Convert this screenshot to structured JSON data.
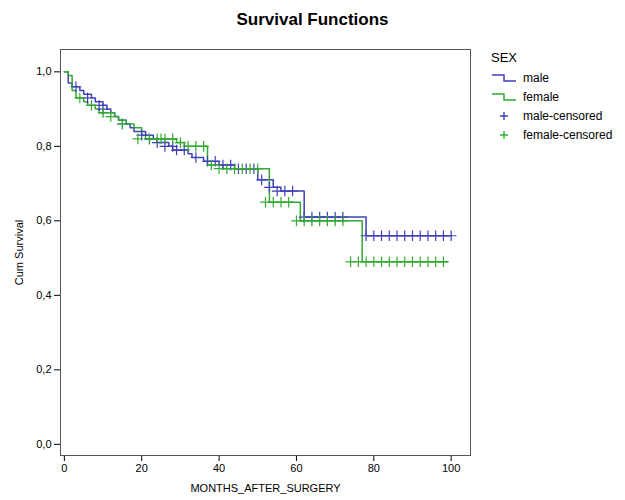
{
  "chart_data": {
    "type": "line",
    "title": "Survival Functions",
    "xlabel": "MONTHS_AFTER_SURGERY",
    "ylabel": "Cum Survival",
    "legend_title": "SEX",
    "legend": "right",
    "grid": false,
    "xlim": [
      -1,
      105
    ],
    "ylim": [
      -0.03,
      1.06
    ],
    "xticks": [
      0,
      20,
      40,
      60,
      80,
      100
    ],
    "yticks": [
      {
        "value": 0.0,
        "label": "0,0"
      },
      {
        "value": 0.2,
        "label": "0,2"
      },
      {
        "value": 0.4,
        "label": "0,4"
      },
      {
        "value": 0.6,
        "label": "0,6"
      },
      {
        "value": 0.8,
        "label": "0,8"
      },
      {
        "value": 1.0,
        "label": "1,0"
      }
    ],
    "series": [
      {
        "name": "male",
        "type": "line",
        "line_style": "step",
        "color": "#4040bb",
        "x": [
          0,
          1,
          2,
          4,
          5,
          7,
          8,
          10,
          11,
          12,
          13,
          14,
          16,
          17,
          18,
          19,
          21,
          23,
          24,
          25,
          27,
          28,
          30,
          32,
          33,
          35,
          36,
          38,
          40,
          42,
          44,
          46,
          48,
          50,
          52,
          54,
          56,
          58,
          62,
          64,
          66,
          68,
          72,
          76,
          78,
          80,
          82,
          84,
          86,
          88,
          90,
          92,
          94,
          96,
          98,
          100
        ],
        "values": [
          1.0,
          0.97,
          0.96,
          0.95,
          0.94,
          0.93,
          0.92,
          0.91,
          0.9,
          0.89,
          0.88,
          0.87,
          0.86,
          0.85,
          0.84,
          0.84,
          0.83,
          0.82,
          0.81,
          0.81,
          0.8,
          0.79,
          0.79,
          0.78,
          0.77,
          0.77,
          0.76,
          0.76,
          0.75,
          0.75,
          0.74,
          0.74,
          0.74,
          0.71,
          0.71,
          0.69,
          0.68,
          0.68,
          0.61,
          0.61,
          0.61,
          0.61,
          0.61,
          0.61,
          0.56,
          0.56,
          0.56,
          0.56,
          0.56,
          0.56,
          0.56,
          0.56,
          0.56,
          0.56,
          0.56,
          0.56
        ]
      },
      {
        "name": "female",
        "type": "line",
        "line_style": "step",
        "color": "#33aa33",
        "x": [
          0,
          1,
          2,
          3,
          5,
          6,
          8,
          9,
          11,
          13,
          14,
          16,
          17,
          18,
          20,
          21,
          23,
          27,
          29,
          31,
          33,
          35,
          37,
          39,
          41,
          43,
          45,
          47,
          49,
          51,
          53,
          55,
          57,
          59,
          61,
          63,
          65,
          67,
          69,
          71,
          73,
          75,
          77,
          79,
          81,
          83,
          85,
          87,
          89,
          91,
          93,
          95,
          97,
          99
        ],
        "values": [
          1.0,
          0.99,
          0.95,
          0.93,
          0.92,
          0.91,
          0.9,
          0.89,
          0.89,
          0.88,
          0.87,
          0.86,
          0.86,
          0.85,
          0.83,
          0.82,
          0.82,
          0.82,
          0.81,
          0.8,
          0.8,
          0.8,
          0.75,
          0.75,
          0.74,
          0.74,
          0.74,
          0.74,
          0.74,
          0.74,
          0.65,
          0.65,
          0.65,
          0.65,
          0.6,
          0.6,
          0.6,
          0.6,
          0.6,
          0.6,
          0.6,
          0.6,
          0.49,
          0.49,
          0.49,
          0.49,
          0.49,
          0.49,
          0.49,
          0.49,
          0.49,
          0.49,
          0.49,
          0.49
        ]
      },
      {
        "name": "male-censored",
        "type": "scatter",
        "marker": "+",
        "color": "#4040bb",
        "x": [
          3,
          6,
          9,
          10,
          15,
          20,
          22,
          24,
          26,
          28,
          29,
          31,
          34,
          37,
          39,
          41,
          43,
          45,
          47,
          49,
          51,
          53,
          55,
          57,
          59,
          62,
          64,
          66,
          68,
          70,
          72,
          78,
          80,
          82,
          84,
          86,
          88,
          90,
          92,
          94,
          96,
          98,
          100
        ],
        "values": [
          0.96,
          0.93,
          0.91,
          0.9,
          0.86,
          0.83,
          0.82,
          0.81,
          0.8,
          0.8,
          0.79,
          0.79,
          0.77,
          0.76,
          0.76,
          0.75,
          0.75,
          0.74,
          0.74,
          0.74,
          0.71,
          0.69,
          0.68,
          0.68,
          0.68,
          0.61,
          0.61,
          0.61,
          0.61,
          0.61,
          0.61,
          0.56,
          0.56,
          0.56,
          0.56,
          0.56,
          0.56,
          0.56,
          0.56,
          0.56,
          0.56,
          0.56,
          0.56
        ]
      },
      {
        "name": "female-censored",
        "type": "scatter",
        "marker": "+",
        "color": "#33aa33",
        "x": [
          4,
          7,
          10,
          12,
          15,
          19,
          22,
          24,
          25,
          26,
          28,
          30,
          32,
          34,
          36,
          38,
          40,
          42,
          44,
          46,
          48,
          50,
          52,
          54,
          56,
          58,
          60,
          62,
          64,
          66,
          68,
          70,
          72,
          74,
          76,
          78,
          80,
          82,
          84,
          86,
          88,
          90,
          92,
          94,
          96,
          98
        ],
        "values": [
          0.93,
          0.91,
          0.89,
          0.88,
          0.86,
          0.82,
          0.82,
          0.82,
          0.82,
          0.82,
          0.82,
          0.81,
          0.8,
          0.8,
          0.8,
          0.75,
          0.74,
          0.74,
          0.74,
          0.74,
          0.74,
          0.74,
          0.65,
          0.65,
          0.65,
          0.65,
          0.6,
          0.6,
          0.6,
          0.6,
          0.6,
          0.6,
          0.6,
          0.49,
          0.49,
          0.49,
          0.49,
          0.49,
          0.49,
          0.49,
          0.49,
          0.49,
          0.49,
          0.49,
          0.49,
          0.49
        ]
      }
    ]
  }
}
